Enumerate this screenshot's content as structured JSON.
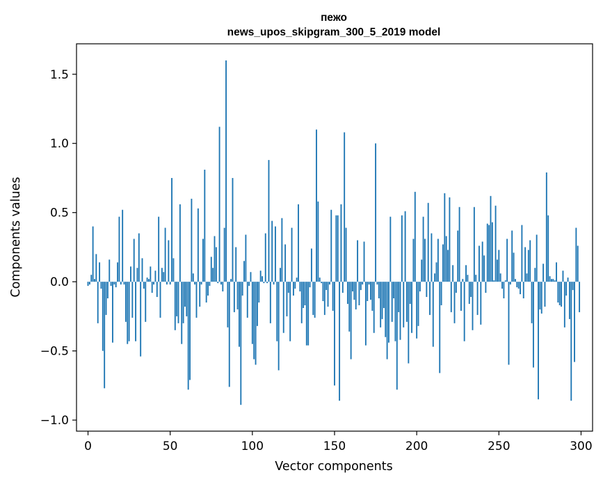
{
  "chart_data": {
    "type": "bar",
    "title": [
      "пежо",
      "news_upos_skipgram_300_5_2019 model"
    ],
    "xlabel": "Vector components",
    "ylabel": "Components values",
    "xlim": [
      -7,
      307
    ],
    "ylim": [
      -1.08,
      1.72
    ],
    "xticks": [
      0,
      50,
      100,
      150,
      200,
      250,
      300
    ],
    "yticks": [
      -1.0,
      -0.5,
      0.0,
      0.5,
      1.0,
      1.5
    ],
    "ytick_labels": [
      "−1.0",
      "−0.5",
      "0.0",
      "0.5",
      "1.0",
      "1.5"
    ],
    "bar_color": "#1f77b4",
    "x": [
      0,
      1,
      2,
      3,
      4,
      5,
      6,
      7,
      8,
      9,
      10,
      11,
      12,
      13,
      14,
      15,
      16,
      17,
      18,
      19,
      20,
      21,
      22,
      23,
      24,
      25,
      26,
      27,
      28,
      29,
      30,
      31,
      32,
      33,
      34,
      35,
      36,
      37,
      38,
      39,
      40,
      41,
      42,
      43,
      44,
      45,
      46,
      47,
      48,
      49,
      50,
      51,
      52,
      53,
      54,
      55,
      56,
      57,
      58,
      59,
      60,
      61,
      62,
      63,
      64,
      65,
      66,
      67,
      68,
      69,
      70,
      71,
      72,
      73,
      74,
      75,
      76,
      77,
      78,
      79,
      80,
      81,
      82,
      83,
      84,
      85,
      86,
      87,
      88,
      89,
      90,
      91,
      92,
      93,
      94,
      95,
      96,
      97,
      98,
      99,
      100,
      101,
      102,
      103,
      104,
      105,
      106,
      107,
      108,
      109,
      110,
      111,
      112,
      113,
      114,
      115,
      116,
      117,
      118,
      119,
      120,
      121,
      122,
      123,
      124,
      125,
      126,
      127,
      128,
      129,
      130,
      131,
      132,
      133,
      134,
      135,
      136,
      137,
      138,
      139,
      140,
      141,
      142,
      143,
      144,
      145,
      146,
      147,
      148,
      149,
      150,
      151,
      152,
      153,
      154,
      155,
      156,
      157,
      158,
      159,
      160,
      161,
      162,
      163,
      164,
      165,
      166,
      167,
      168,
      169,
      170,
      171,
      172,
      173,
      174,
      175,
      176,
      177,
      178,
      179,
      180,
      181,
      182,
      183,
      184,
      185,
      186,
      187,
      188,
      189,
      190,
      191,
      192,
      193,
      194,
      195,
      196,
      197,
      198,
      199,
      200,
      201,
      202,
      203,
      204,
      205,
      206,
      207,
      208,
      209,
      210,
      211,
      212,
      213,
      214,
      215,
      216,
      217,
      218,
      219,
      220,
      221,
      222,
      223,
      224,
      225,
      226,
      227,
      228,
      229,
      230,
      231,
      232,
      233,
      234,
      235,
      236,
      237,
      238,
      239,
      240,
      241,
      242,
      243,
      244,
      245,
      246,
      247,
      248,
      249,
      250,
      251,
      252,
      253,
      254,
      255,
      256,
      257,
      258,
      259,
      260,
      261,
      262,
      263,
      264,
      265,
      266,
      267,
      268,
      269,
      270,
      271,
      272,
      273,
      274,
      275,
      276,
      277,
      278,
      279,
      280,
      281,
      282,
      283,
      284,
      285,
      286,
      287,
      288,
      289,
      290,
      291,
      292,
      293,
      294,
      295,
      296,
      297,
      298,
      299
    ],
    "values": [
      -0.03,
      -0.02,
      0.05,
      0.4,
      0.02,
      0.2,
      -0.3,
      0.14,
      -0.05,
      -0.5,
      -0.77,
      -0.24,
      -0.12,
      0.16,
      -0.03,
      -0.44,
      -0.02,
      -0.04,
      0.14,
      0.47,
      -0.02,
      0.52,
      -0.02,
      -0.29,
      -0.45,
      -0.43,
      0.11,
      -0.26,
      0.31,
      -0.43,
      0.1,
      0.35,
      -0.54,
      0.17,
      -0.05,
      -0.29,
      0.03,
      0.02,
      0.11,
      -0.08,
      -0.02,
      0.08,
      -0.11,
      0.47,
      -0.26,
      0.1,
      0.07,
      0.39,
      -0.02,
      0.3,
      -0.02,
      0.75,
      0.17,
      -0.35,
      -0.25,
      -0.3,
      0.56,
      -0.45,
      -0.3,
      -0.18,
      -0.25,
      -0.78,
      -0.71,
      0.6,
      0.06,
      -0.02,
      -0.26,
      0.53,
      -0.18,
      -0.02,
      0.31,
      0.81,
      -0.15,
      -0.1,
      -0.03,
      0.18,
      0.1,
      0.33,
      0.25,
      -0.01,
      1.12,
      -0.02,
      -0.07,
      0.39,
      1.6,
      -0.33,
      -0.76,
      0.02,
      0.75,
      -0.22,
      0.25,
      -0.2,
      -0.47,
      -0.89,
      -0.1,
      0.15,
      0.34,
      -0.26,
      -0.03,
      0.07,
      -0.45,
      -0.56,
      -0.6,
      -0.32,
      -0.15,
      0.08,
      0.04,
      -0.01,
      0.35,
      -0.01,
      0.88,
      -0.3,
      0.44,
      -0.02,
      0.4,
      -0.43,
      -0.64,
      0.1,
      0.46,
      -0.37,
      0.27,
      -0.25,
      -0.08,
      -0.43,
      0.39,
      -0.1,
      -0.05,
      0.03,
      0.56,
      -0.07,
      -0.3,
      -0.19,
      -0.17,
      -0.46,
      -0.46,
      -0.04,
      0.24,
      -0.24,
      -0.26,
      1.1,
      0.58,
      0.03,
      -0.01,
      -0.14,
      -0.24,
      -0.06,
      -0.18,
      -0.02,
      0.52,
      -0.21,
      -0.75,
      0.48,
      0.48,
      -0.86,
      0.56,
      -0.08,
      1.08,
      0.39,
      -0.16,
      -0.36,
      -0.56,
      -0.07,
      -0.13,
      -0.2,
      0.3,
      -0.17,
      -0.06,
      -0.02,
      0.29,
      -0.46,
      -0.14,
      -0.02,
      -0.13,
      -0.21,
      -0.37,
      1.0,
      -0.02,
      -0.12,
      -0.33,
      -0.27,
      -0.19,
      -0.4,
      -0.56,
      -0.44,
      0.47,
      -0.29,
      -0.12,
      -0.43,
      -0.78,
      -0.22,
      -0.42,
      0.48,
      -0.33,
      0.51,
      -0.29,
      -0.59,
      -0.16,
      -0.37,
      0.31,
      0.65,
      -0.41,
      -0.32,
      -0.07,
      0.16,
      0.47,
      0.31,
      -0.11,
      0.57,
      -0.24,
      0.35,
      -0.47,
      0.06,
      0.14,
      0.31,
      -0.66,
      -0.17,
      0.27,
      0.64,
      0.33,
      0.23,
      0.61,
      -0.22,
      0.12,
      -0.3,
      -0.08,
      0.37,
      0.54,
      -0.21,
      0.02,
      -0.43,
      0.12,
      0.05,
      -0.16,
      -0.11,
      -0.35,
      0.54,
      0.05,
      -0.24,
      0.26,
      -0.31,
      0.29,
      0.19,
      -0.08,
      0.42,
      0.41,
      0.62,
      0.43,
      0.01,
      0.55,
      0.16,
      0.23,
      0.06,
      -0.05,
      -0.12,
      0.01,
      0.31,
      -0.6,
      -0.02,
      0.37,
      0.21,
      0.02,
      -0.04,
      -0.05,
      -0.09,
      0.41,
      -0.12,
      0.25,
      0.06,
      0.23,
      0.3,
      -0.3,
      -0.62,
      0.1,
      0.34,
      -0.85,
      -0.2,
      -0.23,
      0.13,
      -0.18,
      0.79,
      0.48,
      0.04,
      0.02,
      0.02,
      0.01,
      0.14,
      -0.15,
      -0.17,
      -0.18,
      0.08,
      -0.33,
      -0.1,
      0.03,
      -0.27,
      -0.86,
      -0.06,
      -0.58,
      0.39,
      0.26,
      -0.22
    ]
  }
}
